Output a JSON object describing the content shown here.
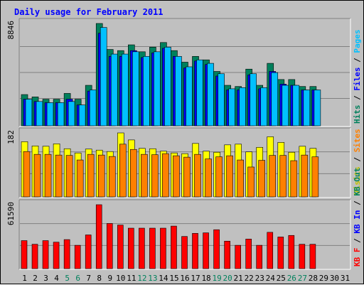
{
  "chart_data": {
    "type": "bar",
    "title": "Daily usage for February 2011",
    "days": [
      "1",
      "2",
      "3",
      "4",
      "5",
      "6",
      "7",
      "8",
      "9",
      "10",
      "11",
      "12",
      "13",
      "14",
      "15",
      "16",
      "17",
      "18",
      "19",
      "20",
      "21",
      "22",
      "23",
      "24",
      "25",
      "26",
      "27",
      "28",
      "29",
      "30",
      "31"
    ],
    "weekend_days": [
      "5",
      "6",
      "12",
      "13",
      "19",
      "20",
      "26",
      "27"
    ],
    "panels": [
      {
        "id": "hits-files-pages",
        "max_label": "8846",
        "ylim": [
          0,
          8846
        ],
        "legend": [
          {
            "text": "Hits",
            "color": "#00805c"
          },
          {
            "text": " / ",
            "color": "#000000"
          },
          {
            "text": "Files",
            "color": "#0000ff"
          },
          {
            "text": " / ",
            "color": "#000000"
          },
          {
            "text": "Pages",
            "color": "#00c0ff"
          }
        ],
        "series": [
          {
            "name": "Hits",
            "color": "#00805c",
            "values": [
              2700,
              2500,
              2300,
              2300,
              2800,
              2300,
              3500,
              8846,
              6600,
              6500,
              7000,
              6400,
              6800,
              7200,
              6500,
              5500,
              6000,
              5700,
              4700,
              3500,
              3400,
              4900,
              3500,
              5400,
              4000,
              4000,
              3400,
              3400,
              0,
              0,
              0
            ]
          },
          {
            "name": "Files",
            "color": "#0000ff",
            "values": [
              2300,
              2100,
              2000,
              2000,
              2300,
              1800,
              3000,
              8000,
              6000,
              6000,
              6500,
              5900,
              6300,
              6700,
              6000,
              5000,
              5600,
              5300,
              4300,
              3100,
              3100,
              4400,
              3200,
              4700,
              3600,
              3500,
              3100,
              3100,
              0,
              0,
              0
            ]
          },
          {
            "name": "Pages",
            "color": "#00c0ff",
            "values": [
              2300,
              2100,
              2000,
              2000,
              2100,
              1800,
              3100,
              8500,
              6200,
              6200,
              6400,
              6000,
              6400,
              6800,
              6000,
              5100,
              5700,
              5400,
              4500,
              3200,
              3300,
              4500,
              3300,
              4600,
              3500,
              3500,
              3100,
              3100,
              0,
              0,
              0
            ]
          }
        ]
      },
      {
        "id": "visits-sites",
        "max_label": "182",
        "ylim": [
          0,
          182
        ],
        "legend": [
          {
            "text": "Visits",
            "color": "#c0c000"
          },
          {
            "text": " / ",
            "color": "#000000"
          },
          {
            "text": "Sites",
            "color": "#ff8000"
          }
        ],
        "series": [
          {
            "name": "Visits",
            "color": "#ffff00",
            "values": [
              157,
              145,
              144,
              151,
              137,
              125,
              136,
              133,
              129,
              182,
              162,
              138,
              137,
              130,
              125,
              123,
              152,
              130,
              127,
              148,
              150,
              128,
              141,
              171,
              155,
              127,
              144,
              138,
              0,
              0,
              0
            ]
          },
          {
            "name": "Sites",
            "color": "#ff8000",
            "values": [
              129,
              121,
              121,
              119,
              118,
              105,
              121,
              119,
              115,
              150,
              135,
              121,
              120,
              123,
              117,
              113,
              121,
              108,
              114,
              117,
              105,
              85,
              104,
              118,
              118,
              103,
              119,
              114,
              0,
              0,
              0
            ]
          }
        ]
      },
      {
        "id": "kbf-kbin-kbout",
        "max_label": "61590",
        "ylim": [
          0,
          61590
        ],
        "legend": [
          {
            "text": "KB F",
            "color": "#ff0000"
          },
          {
            "text": " / ",
            "color": "#000000"
          },
          {
            "text": "KB In",
            "color": "#0000ff"
          },
          {
            "text": " / ",
            "color": "#000000"
          },
          {
            "text": "KB Out",
            "color": "#00805c"
          }
        ],
        "series": [
          {
            "name": "KB F",
            "color": "#ff0000",
            "values": [
              27000,
              23500,
              27000,
              25500,
              28000,
              22500,
              32500,
              61590,
              43500,
              42000,
              39000,
              39000,
              39000,
              39000,
              41000,
              31000,
              34000,
              34500,
              37500,
              26500,
              22500,
              28500,
              22500,
              35000,
              30500,
              32000,
              23500,
              23500,
              0,
              0,
              0
            ]
          }
        ]
      }
    ]
  }
}
